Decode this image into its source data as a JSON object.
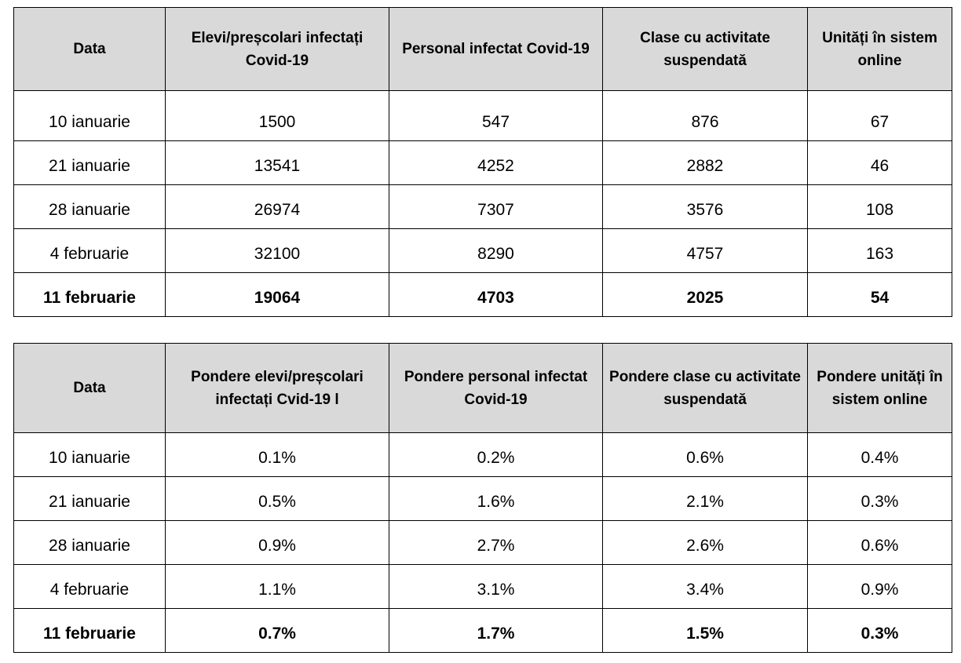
{
  "table_counts": {
    "headers": [
      "Data",
      "Elevi/preșcolari infectați Covid-19",
      "Personal infectat Covid-19",
      "Clase cu activitate suspendată",
      "Unități în sistem online"
    ],
    "rows": [
      [
        "10 ianuarie",
        "1500",
        "547",
        "876",
        "67"
      ],
      [
        "21 ianuarie",
        "13541",
        "4252",
        "2882",
        "46"
      ],
      [
        "28 ianuarie",
        "26974",
        "7307",
        "3576",
        "108"
      ],
      [
        "4 februarie",
        "32100",
        "8290",
        "4757",
        "163"
      ],
      [
        "11 februarie",
        "19064",
        "4703",
        "2025",
        "54"
      ]
    ]
  },
  "table_shares": {
    "headers": [
      "Data",
      "Pondere elevi/preșcolari infectați Cvid-19 l",
      "Pondere personal infectat Covid-19",
      "Pondere clase cu activitate suspendată",
      "Pondere unități în sistem online"
    ],
    "rows": [
      [
        "10 ianuarie",
        "0.1%",
        "0.2%",
        "0.6%",
        "0.4%"
      ],
      [
        "21 ianuarie",
        "0.5%",
        "1.6%",
        "2.1%",
        "0.3%"
      ],
      [
        "28 ianuarie",
        "0.9%",
        "2.7%",
        "2.6%",
        "0.6%"
      ],
      [
        "4 februarie",
        "1.1%",
        "3.1%",
        "3.4%",
        "0.9%"
      ],
      [
        "11 februarie",
        "0.7%",
        "1.7%",
        "1.5%",
        "0.3%"
      ]
    ]
  }
}
